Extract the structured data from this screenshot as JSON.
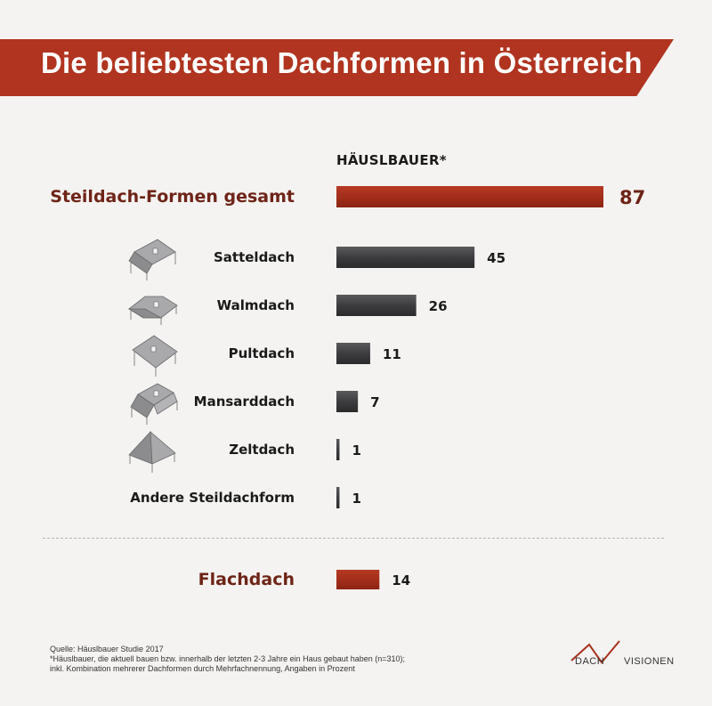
{
  "title": "Die beliebtesten Dachformen in Österreich",
  "header_label": "HÄUSLBAUER*",
  "colors": {
    "accent": "#a8311d",
    "bar_dark": "#3a3a3c",
    "text_accent": "#6e2417"
  },
  "chart_data": {
    "type": "bar",
    "orientation": "horizontal",
    "title": "Die beliebtesten Dachformen in Österreich",
    "series_name": "HÄUSLBAUER*",
    "unit": "Prozent",
    "xlim": [
      0,
      100
    ],
    "categories": [
      "Steildach-Formen gesamt",
      "Satteldach",
      "Walmdach",
      "Pultdach",
      "Mansarddach",
      "Zeltdach",
      "Andere Steildachform",
      "Flachdach"
    ],
    "values": [
      87,
      45,
      26,
      11,
      7,
      1,
      1,
      14
    ],
    "icons": [
      "",
      "satteldach-icon",
      "walmdach-icon",
      "pultdach-icon",
      "mansarddach-icon",
      "zeltdach-icon",
      "",
      ""
    ]
  },
  "footnote": {
    "source": "Quelle: Häuslbauer Studie 2017",
    "note1": "*Häuslbauer, die aktuell bauen bzw. innerhalb der letzten 2-3 Jahre ein Haus gebaut haben (n=310);",
    "note2": "inkl. Kombination mehrerer Dachformen durch Mehrfachnennung, Angaben in Prozent"
  },
  "logo": {
    "left": "DACH",
    "right": "VISIONEN"
  }
}
